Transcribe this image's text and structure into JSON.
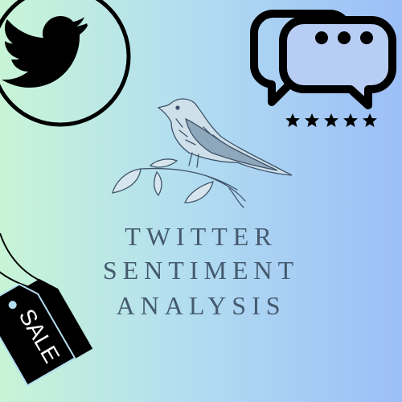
{
  "title": {
    "line1": "TWITTER",
    "line2": "SENTIMENT",
    "line3": "ANALYSIS"
  },
  "sale_tag": {
    "label": "SALE"
  },
  "chat_bubble": {
    "rating_stars": 5
  },
  "icons": {
    "top_left": "twitter-bird-icon",
    "top_right": "chat-bubbles-icon",
    "center": "songbird-sketch-icon",
    "bottom_left": "sale-tag-icon"
  },
  "colors": {
    "gradient_left": "#c8f5d6",
    "gradient_right": "#9cbef7",
    "title_text": "#455a6e",
    "icon_black": "#000000"
  }
}
